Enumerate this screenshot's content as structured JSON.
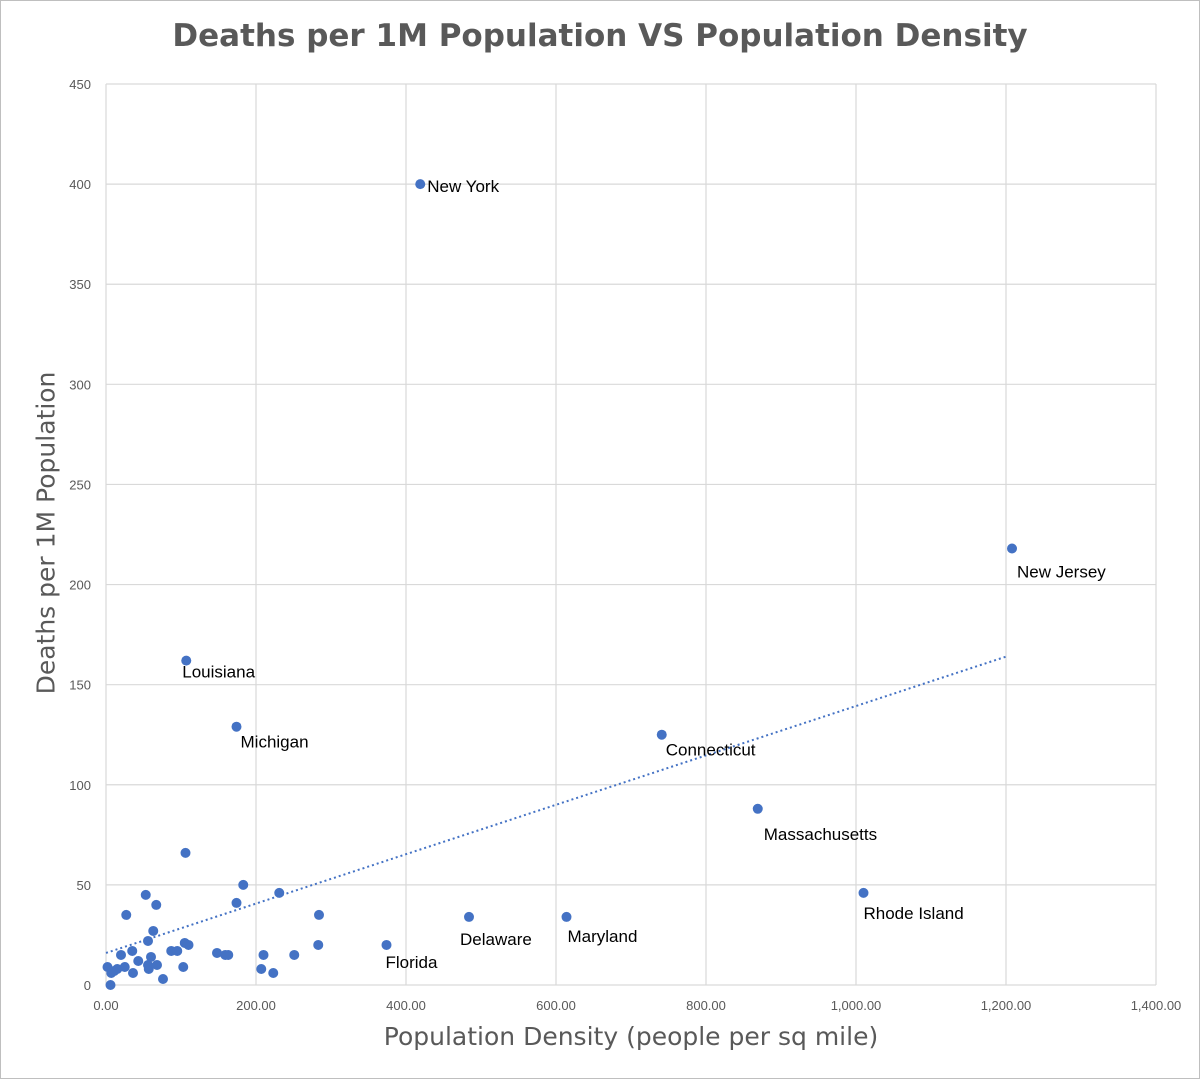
{
  "chart_data": {
    "type": "scatter",
    "title": "Deaths per 1M Population VS Population Density",
    "xlabel": "Population Density (people per sq mile)",
    "ylabel": "Deaths per 1M Population",
    "xlim": [
      0,
      1400
    ],
    "ylim": [
      0,
      450
    ],
    "x_ticks": [
      0,
      200,
      400,
      600,
      800,
      1000,
      1200,
      1400
    ],
    "x_tick_labels": [
      "0.00",
      "200.00",
      "400.00",
      "600.00",
      "800.00",
      "1,000.00",
      "1,200.00",
      "1,400.00"
    ],
    "y_ticks": [
      0,
      50,
      100,
      150,
      200,
      250,
      300,
      350,
      400,
      450
    ],
    "y_tick_labels": [
      "0",
      "50",
      "100",
      "150",
      "200",
      "250",
      "300",
      "350",
      "400",
      "450"
    ],
    "grid": true,
    "marker_color": "#4472c4",
    "trendline": {
      "type": "linear",
      "color": "#4472c4",
      "style": "dotted",
      "x": [
        0,
        1200
      ],
      "y": [
        16,
        164
      ]
    },
    "points": [
      {
        "x": 419,
        "y": 400,
        "label": "New York"
      },
      {
        "x": 1208,
        "y": 218,
        "label": "New Jersey"
      },
      {
        "x": 107,
        "y": 162,
        "label": "Louisiana"
      },
      {
        "x": 174,
        "y": 129,
        "label": "Michigan"
      },
      {
        "x": 741,
        "y": 125,
        "label": "Connecticut"
      },
      {
        "x": 869,
        "y": 88,
        "label": "Massachusetts"
      },
      {
        "x": 1010,
        "y": 46,
        "label": "Rhode Island"
      },
      {
        "x": 484,
        "y": 34,
        "label": "Delaware"
      },
      {
        "x": 614,
        "y": 34,
        "label": "Maryland"
      },
      {
        "x": 374,
        "y": 20,
        "label": "Florida"
      },
      {
        "x": 106,
        "y": 66
      },
      {
        "x": 183,
        "y": 50
      },
      {
        "x": 231,
        "y": 46
      },
      {
        "x": 53,
        "y": 45
      },
      {
        "x": 174,
        "y": 41
      },
      {
        "x": 67,
        "y": 40
      },
      {
        "x": 27,
        "y": 35
      },
      {
        "x": 284,
        "y": 35
      },
      {
        "x": 63,
        "y": 27
      },
      {
        "x": 56,
        "y": 22
      },
      {
        "x": 105,
        "y": 21
      },
      {
        "x": 110,
        "y": 20
      },
      {
        "x": 283,
        "y": 20
      },
      {
        "x": 35,
        "y": 17
      },
      {
        "x": 87,
        "y": 17
      },
      {
        "x": 95,
        "y": 17
      },
      {
        "x": 148,
        "y": 16
      },
      {
        "x": 159,
        "y": 15
      },
      {
        "x": 163,
        "y": 15
      },
      {
        "x": 210,
        "y": 15
      },
      {
        "x": 251,
        "y": 15
      },
      {
        "x": 20,
        "y": 15
      },
      {
        "x": 60,
        "y": 14
      },
      {
        "x": 43,
        "y": 12
      },
      {
        "x": 56,
        "y": 10
      },
      {
        "x": 68,
        "y": 10
      },
      {
        "x": 103,
        "y": 9
      },
      {
        "x": 25,
        "y": 9
      },
      {
        "x": 2,
        "y": 9
      },
      {
        "x": 15,
        "y": 8
      },
      {
        "x": 57,
        "y": 8
      },
      {
        "x": 11,
        "y": 7
      },
      {
        "x": 207,
        "y": 8
      },
      {
        "x": 7,
        "y": 6
      },
      {
        "x": 36,
        "y": 6
      },
      {
        "x": 223,
        "y": 6
      },
      {
        "x": 76,
        "y": 3
      },
      {
        "x": 6,
        "y": 0
      }
    ]
  }
}
